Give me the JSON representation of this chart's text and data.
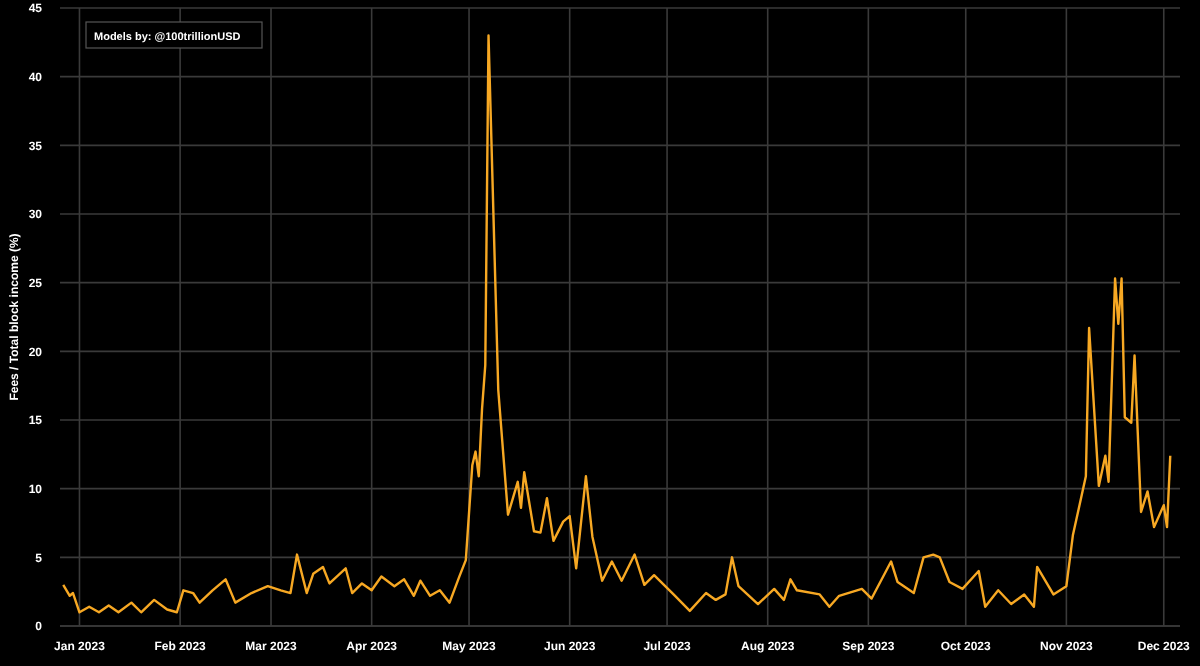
{
  "chart_data": {
    "type": "line",
    "ylabel": "Fees / Total block income (%)",
    "annotations": [
      "Models by: @100trillionUSD"
    ],
    "xlim": [
      "2022-12-26",
      "2023-12-06"
    ],
    "xticks": [
      {
        "value": "2023-01-01",
        "label": "Jan 2023"
      },
      {
        "value": "2023-02-01",
        "label": "Feb 2023"
      },
      {
        "value": "2023-03-01",
        "label": "Mar 2023"
      },
      {
        "value": "2023-04-01",
        "label": "Apr 2023"
      },
      {
        "value": "2023-05-01",
        "label": "May 2023"
      },
      {
        "value": "2023-06-01",
        "label": "Jun 2023"
      },
      {
        "value": "2023-07-01",
        "label": "Jul 2023"
      },
      {
        "value": "2023-08-01",
        "label": "Aug 2023"
      },
      {
        "value": "2023-09-01",
        "label": "Sep 2023"
      },
      {
        "value": "2023-10-01",
        "label": "Oct 2023"
      },
      {
        "value": "2023-11-01",
        "label": "Nov 2023"
      },
      {
        "value": "2023-12-01",
        "label": "Dec 2023"
      }
    ],
    "ylim": [
      0,
      45
    ],
    "yticks": [
      0,
      5,
      10,
      15,
      20,
      25,
      30,
      35,
      40,
      45
    ],
    "grid": true,
    "x": [
      "2022-12-27",
      "2022-12-29",
      "2022-12-30",
      "2023-01-01",
      "2023-01-04",
      "2023-01-07",
      "2023-01-10",
      "2023-01-13",
      "2023-01-17",
      "2023-01-20",
      "2023-01-24",
      "2023-01-28",
      "2023-01-31",
      "2023-02-02",
      "2023-02-05",
      "2023-02-07",
      "2023-02-11",
      "2023-02-15",
      "2023-02-18",
      "2023-02-23",
      "2023-02-28",
      "2023-03-04",
      "2023-03-07",
      "2023-03-09",
      "2023-03-12",
      "2023-03-14",
      "2023-03-17",
      "2023-03-19",
      "2023-03-24",
      "2023-03-26",
      "2023-03-29",
      "2023-04-01",
      "2023-04-04",
      "2023-04-08",
      "2023-04-11",
      "2023-04-14",
      "2023-04-16",
      "2023-04-19",
      "2023-04-22",
      "2023-04-25",
      "2023-04-28",
      "2023-04-30",
      "2023-05-02",
      "2023-05-03",
      "2023-05-04",
      "2023-05-05",
      "2023-05-06",
      "2023-05-07",
      "2023-05-10",
      "2023-05-13",
      "2023-05-16",
      "2023-05-17",
      "2023-05-18",
      "2023-05-21",
      "2023-05-23",
      "2023-05-25",
      "2023-05-27",
      "2023-05-30",
      "2023-06-01",
      "2023-06-03",
      "2023-06-06",
      "2023-06-08",
      "2023-06-11",
      "2023-06-14",
      "2023-06-17",
      "2023-06-21",
      "2023-06-24",
      "2023-06-27",
      "2023-07-03",
      "2023-07-08",
      "2023-07-13",
      "2023-07-16",
      "2023-07-19",
      "2023-07-21",
      "2023-07-23",
      "2023-07-29",
      "2023-08-03",
      "2023-08-06",
      "2023-08-08",
      "2023-08-10",
      "2023-08-17",
      "2023-08-20",
      "2023-08-23",
      "2023-08-30",
      "2023-09-02",
      "2023-09-08",
      "2023-09-10",
      "2023-09-15",
      "2023-09-18",
      "2023-09-21",
      "2023-09-23",
      "2023-09-26",
      "2023-09-30",
      "2023-10-05",
      "2023-10-07",
      "2023-10-11",
      "2023-10-15",
      "2023-10-19",
      "2023-10-22",
      "2023-10-23",
      "2023-10-28",
      "2023-11-01",
      "2023-11-03",
      "2023-11-07",
      "2023-11-08",
      "2023-11-11",
      "2023-11-13",
      "2023-11-14",
      "2023-11-16",
      "2023-11-17",
      "2023-11-18",
      "2023-11-19",
      "2023-11-21",
      "2023-11-22",
      "2023-11-24",
      "2023-11-26",
      "2023-11-28",
      "2023-12-01",
      "2023-12-02",
      "2023-12-03"
    ],
    "series": [
      {
        "color": "#f7a823",
        "values": [
          3.0,
          2.2,
          2.4,
          1.0,
          1.4,
          1.0,
          1.5,
          1.0,
          1.7,
          1.0,
          1.9,
          1.2,
          1.0,
          2.6,
          2.4,
          1.7,
          2.6,
          3.4,
          1.7,
          2.4,
          2.9,
          2.6,
          2.4,
          5.2,
          2.4,
          3.8,
          4.3,
          3.1,
          4.2,
          2.4,
          3.1,
          2.6,
          3.6,
          2.9,
          3.4,
          2.2,
          3.3,
          2.2,
          2.6,
          1.7,
          3.6,
          4.8,
          11.7,
          12.7,
          10.9,
          15.8,
          19,
          43,
          17.2,
          8.1,
          10.5,
          8.6,
          11.2,
          6.9,
          6.8,
          9.3,
          6.2,
          7.6,
          8.0,
          4.2,
          10.9,
          6.5,
          3.3,
          4.7,
          3.3,
          5.2,
          3.0,
          3.7,
          2.3,
          1.1,
          2.4,
          1.9,
          2.3,
          5.0,
          2.9,
          1.6,
          2.7,
          1.9,
          3.4,
          2.6,
          2.3,
          1.4,
          2.2,
          2.7,
          2.0,
          4.7,
          3.2,
          2.4,
          5.0,
          5.2,
          5.0,
          3.2,
          2.7,
          4.0,
          1.4,
          2.6,
          1.6,
          2.3,
          1.4,
          4.3,
          2.3,
          2.9,
          6.6,
          10.9,
          21.7,
          10.2,
          12.4,
          10.5,
          25.3,
          22,
          25.3,
          15.2,
          14.8,
          19.7,
          8.3,
          9.8,
          7.2,
          8.8,
          7.2,
          12.4
        ]
      }
    ]
  }
}
